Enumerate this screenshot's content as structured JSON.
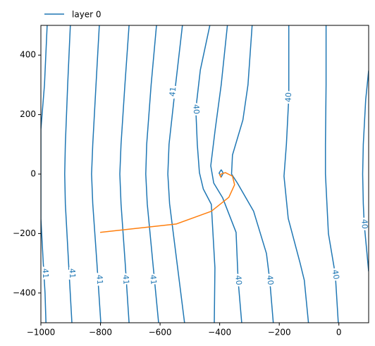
{
  "chart_data": {
    "type": "contour",
    "xlim": [
      -1000,
      100
    ],
    "ylim": [
      -500,
      500
    ],
    "xticks": [
      {
        "value": -1000,
        "label": "−1000"
      },
      {
        "value": -800,
        "label": "−800"
      },
      {
        "value": -600,
        "label": "−600"
      },
      {
        "value": -400,
        "label": "−400"
      },
      {
        "value": -200,
        "label": "−200"
      },
      0
    ],
    "yticks": [
      {
        "value": -400,
        "label": "−400"
      },
      {
        "value": -200,
        "label": "−200"
      },
      0,
      200,
      400
    ],
    "series": [
      {
        "name": "layer 0",
        "color": "#1f77b4",
        "lines": [
          {
            "level": 41,
            "x": [
              -979,
              -988,
              -1000,
              -1000,
              -1000,
              -992,
              -986,
              -983
            ],
            "y": [
              500,
              300,
              150,
              0,
              -150,
              -300,
              -400,
              -500
            ],
            "labels": [
              {
                "x": -986,
                "y": -334
              }
            ]
          },
          {
            "level": 41,
            "x": [
              -901,
              -910,
              -918,
              -920,
              -918,
              -907,
              -896
            ],
            "y": [
              500,
              300,
              100,
              0,
              -100,
              -300,
              -500
            ],
            "labels": [
              {
                "x": -896,
                "y": -334
              }
            ]
          },
          {
            "level": 41,
            "x": [
              -804,
              -815,
              -826,
              -830,
              -826,
              -812,
              -799
            ],
            "y": [
              500,
              300,
              100,
              0,
              -100,
              -300,
              -500
            ],
            "labels": [
              {
                "x": -804,
                "y": -355
              }
            ]
          },
          {
            "level": 41,
            "x": [
              -704,
              -718,
              -731,
              -735,
              -731,
              -717,
              -704
            ],
            "y": [
              500,
              300,
              100,
              0,
              -100,
              -300,
              -500
            ],
            "labels": [
              {
                "x": -716,
                "y": -355
              }
            ]
          },
          {
            "level": 41,
            "x": [
              -612,
              -630,
              -645,
              -648,
              -643,
              -624,
              -605
            ],
            "y": [
              500,
              300,
              100,
              0,
              -100,
              -300,
              -500
            ],
            "labels": [
              {
                "x": -624,
                "y": -355
              }
            ]
          },
          {
            "level": 41,
            "x": [
              -525,
              -548,
              -570,
              -574,
              -568,
              -543,
              -518
            ],
            "y": [
              500,
              300,
              100,
              0,
              -100,
              -300,
              -500
            ],
            "labels": [
              {
                "x": -556,
                "y": 277
              }
            ]
          },
          {
            "level": 40,
            "x": [
              -433,
              -465,
              -480,
              -475,
              -468,
              -455,
              -428,
              -416,
              -418
            ],
            "y": [
              500,
              350,
              218,
              100,
              5,
              -50,
              -102,
              -315,
              -500
            ],
            "labels": [
              {
                "x": -480,
                "y": 218
              }
            ]
          },
          {
            "level": 40,
            "x": [
              -374,
              -395,
              -415,
              -430,
              -420,
              -390,
              -345,
              -338,
              -326
            ],
            "y": [
              500,
              300,
              150,
              28,
              -30,
              -80,
              -196,
              -357,
              -500
            ],
            "labels": [
              {
                "x": -338,
                "y": -357
              }
            ]
          },
          {
            "level": 40,
            "x": [
              -291,
              -305,
              -322,
              -357,
              -360,
              -340,
              -286,
              -243,
              -232,
              -220
            ],
            "y": [
              500,
              300,
              182,
              64,
              0,
              -31,
              -125,
              -267,
              -357,
              -500
            ],
            "labels": [
              {
                "x": -232,
                "y": -357
              }
            ]
          },
          {
            "level": 40,
            "x": [
              -168,
              -168,
              -176,
              -184,
              -170,
              -130,
              -116,
              -102
            ],
            "y": [
              500,
              258,
              100,
              -7,
              -149,
              -300,
              -357,
              -500
            ],
            "labels": [
              {
                "x": -168,
                "y": 258
              }
            ]
          },
          {
            "level": 40,
            "x": [
              -43,
              -43,
              -45,
              -45,
              -35,
              -12,
              -2
            ],
            "y": [
              500,
              300,
              100,
              0,
              -200,
              -338,
              -500
            ],
            "labels": [
              {
                "x": -12,
                "y": -338
              }
            ]
          },
          {
            "level": 40,
            "x": [
              100,
              90,
              82,
              80,
              82,
              85,
              100
            ],
            "y": [
              348,
              250,
              100,
              0,
              -100,
              -168,
              -327
            ],
            "labels": [
              {
                "x": 85,
                "y": -168
              }
            ]
          },
          {
            "x": [
              -395,
              -388,
              -395,
              -402,
              -395
            ],
            "y": [
              15,
              3,
              -10,
              3,
              15
            ]
          }
        ]
      },
      {
        "color": "#ff7f0e",
        "x": [
          -801,
          -546,
          -428,
          -369,
          -350,
          -357,
          -381,
          -400,
          -395
        ],
        "y": [
          -196,
          -168,
          -125,
          -78,
          -36,
          -7,
          5,
          -2,
          -12
        ]
      }
    ]
  }
}
